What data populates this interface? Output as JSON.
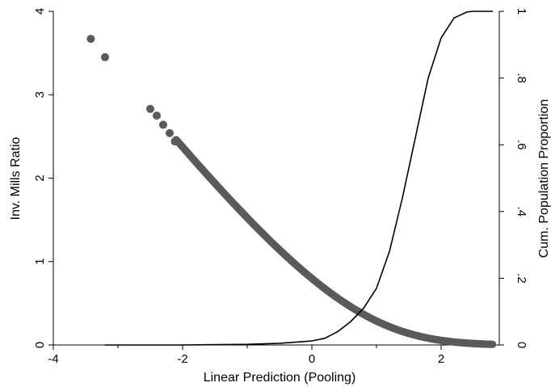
{
  "chart_data": {
    "type": "scatter",
    "xlabel": "Linear Prediction (Pooling)",
    "ylabel": "Inv. Mills Ratio",
    "y2label": "Cum. Population Proportion",
    "xlim": [
      -4,
      2.9
    ],
    "ylim": [
      0,
      4
    ],
    "y2lim": [
      0,
      1
    ],
    "xticks": [
      "-4",
      "-2",
      "0",
      "2"
    ],
    "xtick_values": [
      -4,
      -2,
      0,
      2
    ],
    "yticks": [
      "0",
      "1",
      "2",
      "3",
      "4"
    ],
    "ytick_values": [
      0,
      1,
      2,
      3,
      4
    ],
    "y2ticks": [
      "0",
      ".2",
      ".4",
      ".6",
      ".8",
      "1"
    ],
    "y2tick_values": [
      0,
      0.2,
      0.4,
      0.6,
      0.8,
      1
    ],
    "grid": false,
    "legend": "none",
    "series": [
      {
        "kind": "scatter",
        "axis": "left",
        "color": "#5a5a5a",
        "points": [
          [
            -3.42,
            3.67
          ],
          [
            -3.2,
            3.45
          ],
          [
            -2.5,
            2.83
          ],
          [
            -2.4,
            2.75
          ],
          [
            -2.3,
            2.64
          ],
          [
            -2.2,
            2.54
          ],
          [
            -2.12,
            2.44
          ]
        ],
        "curve": "mills",
        "curve_range": [
          -2.1,
          2.8
        ]
      },
      {
        "kind": "line",
        "axis": "right",
        "color": "#000000",
        "points": [
          [
            -3.2,
            0.0
          ],
          [
            -2.0,
            0.0
          ],
          [
            -1.0,
            0.002
          ],
          [
            -0.5,
            0.005
          ],
          [
            0.0,
            0.012
          ],
          [
            0.2,
            0.02
          ],
          [
            0.4,
            0.04
          ],
          [
            0.6,
            0.07
          ],
          [
            0.8,
            0.11
          ],
          [
            1.0,
            0.17
          ],
          [
            1.2,
            0.28
          ],
          [
            1.4,
            0.44
          ],
          [
            1.6,
            0.62
          ],
          [
            1.8,
            0.8
          ],
          [
            2.0,
            0.92
          ],
          [
            2.2,
            0.98
          ],
          [
            2.4,
            0.998
          ],
          [
            2.5,
            1.0
          ],
          [
            2.8,
            1.0
          ]
        ]
      }
    ]
  }
}
